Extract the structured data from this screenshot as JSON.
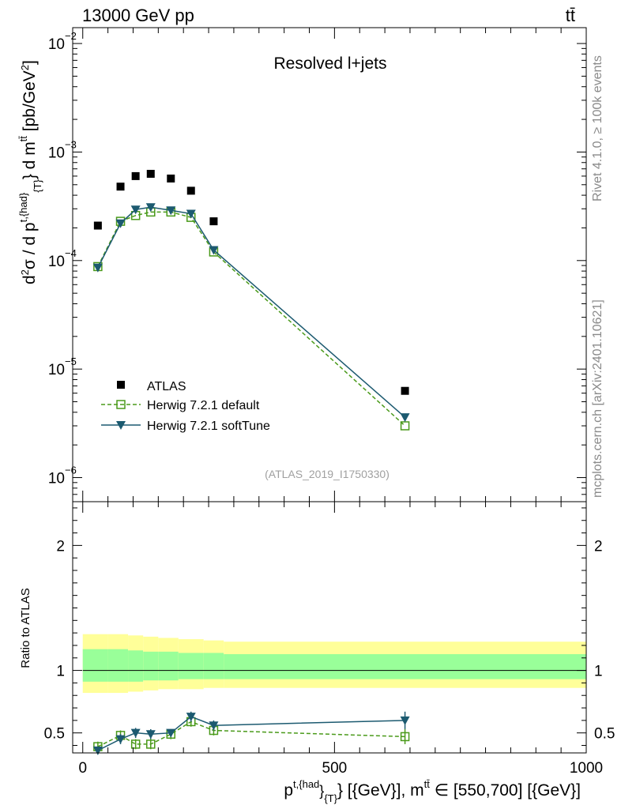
{
  "header": {
    "energy_label": "13000 GeV pp",
    "process_label": "tt̄",
    "plot_title": "Resolved l+jets",
    "analysis_id": "(ATLAS_2019_I1750330)",
    "rivet_label": "Rivet 4.1.0, ≥ 100k events",
    "source_label": "mcplots.cern.ch [arXiv:2401.10621]"
  },
  "chart_data": [
    {
      "type": "scatter",
      "panel": "main",
      "yscale": "log",
      "ylabel": "d²σ / d p_T^{t,had} d m^{tt̄} [pb/GeV²]",
      "xlim": [
        -20,
        1000
      ],
      "ylim": [
        6e-07,
        0.014
      ],
      "y_ticks": [
        {
          "v": 1e-06,
          "label": "10"
        },
        {
          "v": 1e-05,
          "label": "10"
        },
        {
          "v": 0.0001,
          "label": "10"
        },
        {
          "v": 0.001,
          "label": "10"
        },
        {
          "v": 0.01,
          "label": "10"
        }
      ],
      "y_tick_exps": [
        "−6",
        "−5",
        "−4",
        "−3",
        "−2"
      ],
      "legend": [
        "ATLAS",
        "Herwig 7.2.1 default",
        "Herwig 7.2.1 softTune"
      ],
      "series": [
        {
          "name": "ATLAS",
          "color": "#000000",
          "x": [
            30,
            75,
            105,
            135,
            175,
            215,
            260,
            640
          ],
          "values": [
            0.00021,
            0.00048,
            0.0006,
            0.00063,
            0.00057,
            0.00044,
            0.00023,
            6.3e-06
          ]
        },
        {
          "name": "Herwig 7.2.1 default",
          "color": "#4a9a1a",
          "x": [
            30,
            75,
            105,
            135,
            175,
            215,
            260,
            640
          ],
          "values": [
            8.8e-05,
            0.00023,
            0.00026,
            0.00028,
            0.00028,
            0.00025,
            0.00012,
            3e-06
          ]
        },
        {
          "name": "Herwig 7.2.1 softTune",
          "color": "#1c5a70",
          "x": [
            30,
            75,
            105,
            135,
            175,
            215,
            260,
            640
          ],
          "values": [
            8.6e-05,
            0.00022,
            0.000295,
            0.00031,
            0.00029,
            0.00027,
            0.000125,
            3.6e-06
          ]
        }
      ]
    },
    {
      "type": "scatter",
      "panel": "ratio",
      "ylabel": "Ratio to ATLAS",
      "xlabel": "p_T^{t,{had}} [{GeV}], m^{tt̄} ∈ [550,700] [{GeV}]",
      "xlim": [
        -20,
        1000
      ],
      "ylim": [
        0.34,
        2.35
      ],
      "x_ticks": [
        0,
        500,
        1000
      ],
      "y_ticks": [
        0.5,
        1,
        2
      ],
      "bands": {
        "edges": [
          0,
          50,
          90,
          120,
          150,
          190,
          240,
          280,
          1000
        ],
        "yellow_lo": [
          0.82,
          0.82,
          0.83,
          0.84,
          0.85,
          0.85,
          0.86,
          0.86
        ],
        "yellow_hi": [
          1.29,
          1.29,
          1.28,
          1.27,
          1.26,
          1.25,
          1.24,
          1.23
        ],
        "green_lo": [
          0.91,
          0.91,
          0.91,
          0.92,
          0.92,
          0.93,
          0.93,
          0.93
        ],
        "green_hi": [
          1.17,
          1.17,
          1.16,
          1.15,
          1.15,
          1.14,
          1.14,
          1.13
        ]
      },
      "series": [
        {
          "name": "Herwig 7.2.1 default",
          "color": "#4a9a1a",
          "x": [
            30,
            75,
            105,
            135,
            175,
            215,
            260,
            640
          ],
          "values": [
            0.39,
            0.48,
            0.41,
            0.41,
            0.49,
            0.59,
            0.52,
            0.47
          ],
          "err": [
            0.04,
            0.04,
            0.04,
            0.04,
            0.04,
            0.04,
            0.04,
            0.06
          ]
        },
        {
          "name": "Herwig 7.2.1 softTune",
          "color": "#1c5a70",
          "x": [
            30,
            75,
            105,
            135,
            175,
            215,
            260,
            640
          ],
          "values": [
            0.36,
            0.45,
            0.5,
            0.49,
            0.5,
            0.63,
            0.56,
            0.6
          ],
          "err": [
            0.03,
            0.04,
            0.04,
            0.04,
            0.03,
            0.04,
            0.04,
            0.07
          ]
        }
      ]
    }
  ]
}
